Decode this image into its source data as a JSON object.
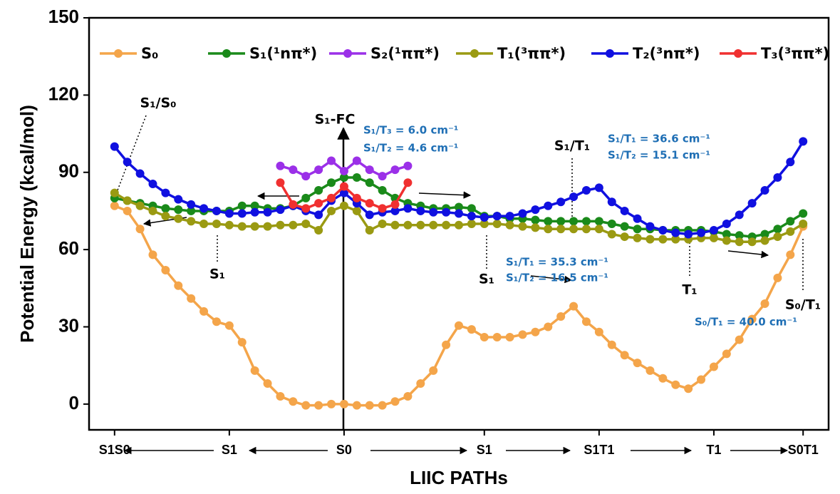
{
  "chart_data": {
    "type": "line",
    "x_label": "LIIC PATHs",
    "y_label": "Potential Energy (kcal/mol)",
    "x": [
      0,
      1,
      2,
      3,
      4,
      5,
      6,
      7,
      8,
      9,
      10,
      11,
      12,
      13,
      14,
      15,
      16,
      17,
      18,
      19,
      20,
      21,
      22,
      23,
      24,
      25,
      26,
      27,
      28,
      29,
      30,
      31,
      32,
      33,
      34,
      35,
      36,
      37,
      38,
      39,
      40,
      41,
      42,
      43,
      44,
      45,
      46,
      47,
      48,
      49,
      50,
      51,
      52,
      53,
      54
    ],
    "xlim": [
      -2,
      56
    ],
    "xticks": [
      {
        "value": 0,
        "label": "S1S0"
      },
      {
        "value": 9,
        "label": "S1"
      },
      {
        "value": 18,
        "label": "S0"
      },
      {
        "value": 29,
        "label": "S1"
      },
      {
        "value": 38,
        "label": "S1T1"
      },
      {
        "value": 47,
        "label": "T1"
      },
      {
        "value": 54,
        "label": "S0T1"
      }
    ],
    "ylim": [
      -10,
      150
    ],
    "yticks": [
      0,
      30,
      60,
      90,
      120,
      150
    ],
    "legend": "top",
    "series": [
      {
        "name": "S₀",
        "color": "#f4a54a",
        "values": [
          77,
          75,
          68,
          58,
          52,
          46,
          41,
          36,
          32,
          30.5,
          24,
          13,
          8,
          3,
          1,
          -0.5,
          -0.5,
          0,
          0,
          -0.5,
          -0.5,
          -0.5,
          1,
          3,
          8,
          13,
          23,
          30.5,
          29,
          26,
          26,
          26,
          27,
          28,
          30,
          34,
          38,
          32,
          28,
          23,
          19,
          16,
          13,
          10,
          7.5,
          6,
          9.5,
          14.5,
          19.5,
          25,
          33,
          39,
          49,
          58,
          69
        ]
      },
      {
        "name": "S₁(¹nπ*)",
        "color": "#1a8a1a",
        "values": [
          80,
          79,
          78,
          77,
          76,
          75.5,
          75,
          75,
          75,
          75,
          77,
          77,
          76,
          76,
          77,
          80,
          83,
          86,
          88,
          88,
          86,
          83,
          80,
          78,
          77,
          76,
          76,
          76.5,
          76,
          73,
          73,
          72,
          72,
          71.5,
          71,
          71,
          71,
          71,
          71,
          70,
          69,
          68,
          68,
          67.5,
          67.5,
          67.5,
          67.5,
          67,
          66,
          65.5,
          65,
          66,
          68,
          71,
          74
        ]
      },
      {
        "name": "S₂(¹ππ*)",
        "color": "#9b30e8",
        "values": [
          null,
          null,
          null,
          null,
          null,
          null,
          null,
          null,
          null,
          null,
          null,
          null,
          null,
          92.5,
          91,
          88.5,
          91,
          94.5,
          90.5,
          94.5,
          91,
          88.5,
          91,
          92.5,
          null,
          null,
          null,
          null,
          null,
          null,
          null,
          null,
          null,
          null,
          null,
          null,
          null,
          null,
          null,
          null,
          null,
          null,
          null,
          null,
          null,
          null,
          null,
          null,
          null,
          null,
          null,
          null,
          null,
          null,
          null
        ]
      },
      {
        "name": "T₁(³ππ*)",
        "color": "#9a9a12",
        "values": [
          82,
          79,
          77,
          75,
          73,
          72,
          71,
          70,
          70,
          69.5,
          69,
          69,
          69,
          69.5,
          69.5,
          70,
          67.5,
          75,
          77,
          75,
          67.5,
          70,
          69.5,
          69.5,
          69.5,
          69.5,
          69.5,
          69.5,
          70,
          70,
          70,
          69.5,
          69,
          68.5,
          68,
          68,
          68,
          68,
          68,
          66,
          65,
          64.5,
          64,
          64,
          64,
          64,
          64.5,
          64.5,
          63.5,
          63,
          63,
          63.5,
          65,
          67,
          70
        ]
      },
      {
        "name": "T₂(³nπ*)",
        "color": "#1010e0",
        "values": [
          100,
          94,
          89.5,
          85.5,
          82,
          79.5,
          77.5,
          76,
          75,
          74,
          74,
          74.5,
          74.5,
          75.5,
          77,
          75,
          73.5,
          79,
          82,
          78,
          73.5,
          74.5,
          75,
          76,
          75,
          74.5,
          74.5,
          74,
          73,
          72.5,
          73,
          73,
          74,
          75.5,
          77,
          78.5,
          80.5,
          83,
          84,
          78.5,
          75,
          72,
          69,
          67.5,
          66.5,
          66,
          66.5,
          67.5,
          70,
          73.5,
          78,
          83,
          88,
          94,
          102
        ]
      },
      {
        "name": "T₃(³ππ*)",
        "color": "#f03030",
        "values": [
          null,
          null,
          null,
          null,
          null,
          null,
          null,
          null,
          null,
          null,
          null,
          null,
          null,
          86,
          77.5,
          76,
          78,
          80,
          84.5,
          80,
          78,
          76,
          77.5,
          86,
          null,
          null,
          null,
          null,
          null,
          null,
          null,
          null,
          null,
          null,
          null,
          null,
          null,
          null,
          null,
          null,
          null,
          null,
          null,
          null,
          null,
          null,
          null,
          null,
          null,
          null,
          null,
          null,
          null,
          null,
          null
        ]
      }
    ],
    "annotations": [
      "S₁/S₀",
      "S₁-FC",
      "S₁/T₁",
      "S₁",
      "S₁",
      "T₁",
      "S₀/T₁"
    ],
    "couplings": [
      "S₁/T₃ = 6.0 cm⁻¹",
      "S₁/T₂ = 4.6 cm⁻¹",
      "S₁/T₁ = 36.6 cm⁻¹",
      "S₁/T₂ = 15.1 cm⁻¹",
      "S₁/T₁ = 35.3 cm⁻¹",
      "S₁/T₂ = 16.5 cm⁻¹",
      "S₀/T₁ = 40.0 cm⁻¹"
    ],
    "coupling_color": "#1f6fb5"
  }
}
